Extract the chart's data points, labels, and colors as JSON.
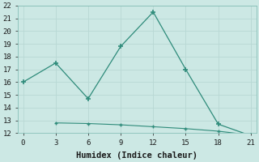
{
  "line1_x": [
    0,
    3,
    6,
    9,
    12,
    15,
    18,
    21
  ],
  "line1_y": [
    16.0,
    17.5,
    14.7,
    18.8,
    21.5,
    17.0,
    12.7,
    11.8
  ],
  "line2_x": [
    3,
    6,
    9,
    12,
    15,
    18,
    21
  ],
  "line2_y": [
    12.8,
    12.75,
    12.65,
    12.5,
    12.35,
    12.15,
    11.85
  ],
  "line_color": "#2e8b7a",
  "bg_color": "#cce8e4",
  "grid_color": "#b8d8d4",
  "xlabel": "Humidex (Indice chaleur)",
  "xlim": [
    -0.5,
    21.5
  ],
  "ylim": [
    12,
    22
  ],
  "xticks": [
    0,
    3,
    6,
    9,
    12,
    15,
    18,
    21
  ],
  "yticks": [
    12,
    13,
    14,
    15,
    16,
    17,
    18,
    19,
    20,
    21,
    22
  ],
  "tick_fontsize": 6.5,
  "xlabel_fontsize": 7.5
}
